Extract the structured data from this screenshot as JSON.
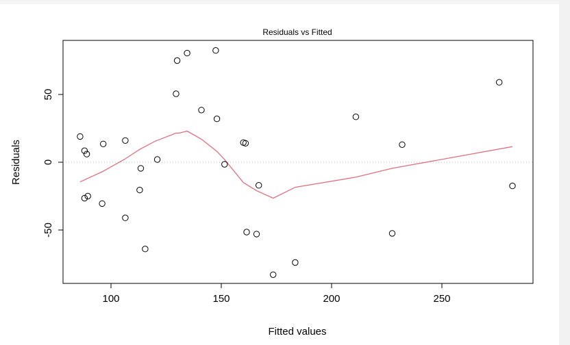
{
  "chart_data": {
    "type": "scatter",
    "title": "Residuals vs Fitted",
    "xlabel": "Fitted values",
    "ylabel": "Residuals",
    "xlim": [
      80,
      290
    ],
    "ylim": [
      -90,
      90
    ],
    "x_ticks": [
      100,
      150,
      200,
      250
    ],
    "x_tick_labels": [
      "100",
      "150",
      "200",
      "250"
    ],
    "y_ticks": [
      -50,
      0,
      50
    ],
    "y_tick_labels": [
      "-50",
      "0",
      "50"
    ],
    "grid": false,
    "reference_line": 0,
    "point_color": "#000000",
    "smooth_color": "#e07080",
    "points": [
      {
        "x": 86,
        "y": 19
      },
      {
        "x": 88,
        "y": 8.5
      },
      {
        "x": 88,
        "y": -26.5
      },
      {
        "x": 89,
        "y": 6
      },
      {
        "x": 89.5,
        "y": -25
      },
      {
        "x": 96,
        "y": -30.5
      },
      {
        "x": 96.5,
        "y": 13.5
      },
      {
        "x": 106.5,
        "y": 16
      },
      {
        "x": 106.5,
        "y": -41
      },
      {
        "x": 113,
        "y": -20.5
      },
      {
        "x": 113.5,
        "y": -4.5
      },
      {
        "x": 115.5,
        "y": -64
      },
      {
        "x": 121,
        "y": 2
      },
      {
        "x": 129.5,
        "y": 50.5
      },
      {
        "x": 130,
        "y": 75
      },
      {
        "x": 134.5,
        "y": 80.5
      },
      {
        "x": 141,
        "y": 38.5
      },
      {
        "x": 147.5,
        "y": 82.5
      },
      {
        "x": 148,
        "y": 32
      },
      {
        "x": 151.5,
        "y": -1.5
      },
      {
        "x": 160,
        "y": 14.5
      },
      {
        "x": 161,
        "y": 14
      },
      {
        "x": 161.5,
        "y": -51.5
      },
      {
        "x": 166,
        "y": -53
      },
      {
        "x": 167,
        "y": -17
      },
      {
        "x": 173.5,
        "y": -83
      },
      {
        "x": 183.5,
        "y": -74
      },
      {
        "x": 211,
        "y": 33.5
      },
      {
        "x": 227.5,
        "y": -52.5
      },
      {
        "x": 232,
        "y": 13
      },
      {
        "x": 276,
        "y": 59
      },
      {
        "x": 282,
        "y": -17.5
      }
    ],
    "smooth_line": [
      {
        "x": 86,
        "y": -14.5
      },
      {
        "x": 96,
        "y": -7
      },
      {
        "x": 106,
        "y": 2
      },
      {
        "x": 113,
        "y": 9.5
      },
      {
        "x": 120,
        "y": 15.5
      },
      {
        "x": 129.5,
        "y": 21.5
      },
      {
        "x": 131,
        "y": 21.5
      },
      {
        "x": 134.5,
        "y": 23
      },
      {
        "x": 141,
        "y": 17
      },
      {
        "x": 148,
        "y": 8
      },
      {
        "x": 151.5,
        "y": 2
      },
      {
        "x": 160,
        "y": -15
      },
      {
        "x": 166,
        "y": -21
      },
      {
        "x": 173.5,
        "y": -26.5
      },
      {
        "x": 183.5,
        "y": -18.5
      },
      {
        "x": 211,
        "y": -11
      },
      {
        "x": 227.5,
        "y": -4.5
      },
      {
        "x": 282,
        "y": 11.5
      }
    ]
  }
}
